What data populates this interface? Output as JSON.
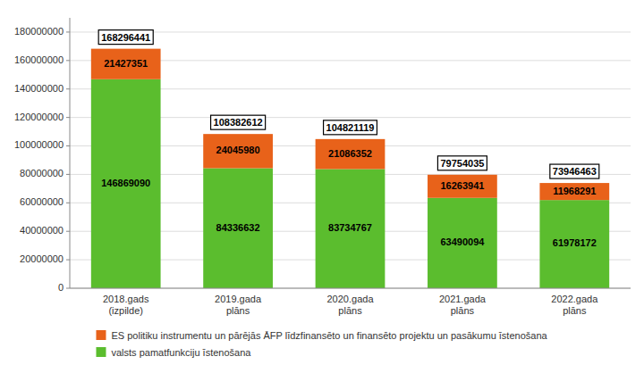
{
  "chart_data": {
    "type": "bar",
    "stacked": true,
    "data_labels": true,
    "grid": true,
    "categories": [
      "2018.gads\n(izpilde)",
      "2019.gada\nplāns",
      "2020.gada\nplāns",
      "2021.gada\nplāns",
      "2022.gada\nplāns"
    ],
    "series": [
      {
        "name": "valsts pamatfunkciju īstenošana",
        "color": "#5BBD2E",
        "values": [
          146869090,
          84336632,
          83734767,
          63490094,
          61978172
        ]
      },
      {
        "name": "ES politiku instrumentu un pārējās ĀFP līdzfinansēto un finansēto projektu un pasākumu īstenošana",
        "color": "#E8621A",
        "values": [
          21427351,
          24045980,
          21086352,
          16263941,
          11968291
        ]
      }
    ],
    "totals": [
      168296441,
      108382612,
      104821119,
      79754035,
      73946463
    ],
    "ylim": [
      0,
      190000000
    ],
    "yticks": [
      0,
      20000000,
      40000000,
      60000000,
      80000000,
      100000000,
      120000000,
      140000000,
      160000000,
      180000000
    ]
  }
}
